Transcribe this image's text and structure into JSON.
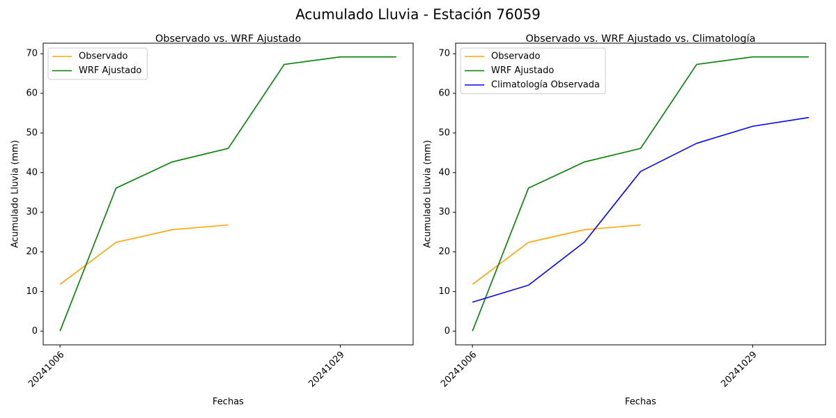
{
  "title": "Acumulado Lluvia - Estación 76059",
  "chart_data": [
    {
      "type": "line",
      "title": "Observado vs. WRF Ajustado",
      "xlabel": "Fechas",
      "ylabel": "Acumulado Lluvia (mm)",
      "categories": [
        "20241006",
        null,
        null,
        null,
        null,
        "20241029",
        null
      ],
      "series": [
        {
          "name": "Observado",
          "color": "orange",
          "values": [
            11.8,
            22.4,
            25.6,
            26.8,
            null,
            null,
            null
          ]
        },
        {
          "name": "WRF Ajustado",
          "color": "green",
          "values": [
            0,
            36.1,
            42.7,
            46.1,
            67.3,
            69.2,
            69.2
          ]
        }
      ],
      "ylim": [
        -3.46,
        72.66
      ],
      "yticks": [
        0,
        10,
        20,
        30,
        40,
        50,
        60,
        70
      ],
      "grid": false,
      "legend": "upper left"
    },
    {
      "type": "line",
      "title": "Observado vs. WRF Ajustado vs. Climatología",
      "xlabel": "Fechas",
      "ylabel": "Acumulado Lluvia (mm)",
      "categories": [
        "20241006",
        null,
        null,
        null,
        null,
        "20241029",
        null
      ],
      "series": [
        {
          "name": "Observado",
          "color": "orange",
          "values": [
            11.8,
            22.4,
            25.6,
            26.8,
            null,
            null,
            null
          ]
        },
        {
          "name": "WRF Ajustado",
          "color": "green",
          "values": [
            0,
            36.1,
            42.7,
            46.1,
            67.3,
            69.2,
            69.2
          ]
        },
        {
          "name": "Climatología Observada",
          "color": "blue",
          "values": [
            7.3,
            11.6,
            22.5,
            40.3,
            47.4,
            51.7,
            53.9
          ]
        }
      ],
      "ylim": [
        -3.46,
        72.66
      ],
      "yticks": [
        0,
        10,
        20,
        30,
        40,
        50,
        60,
        70
      ],
      "grid": false,
      "legend": "upper left"
    }
  ]
}
